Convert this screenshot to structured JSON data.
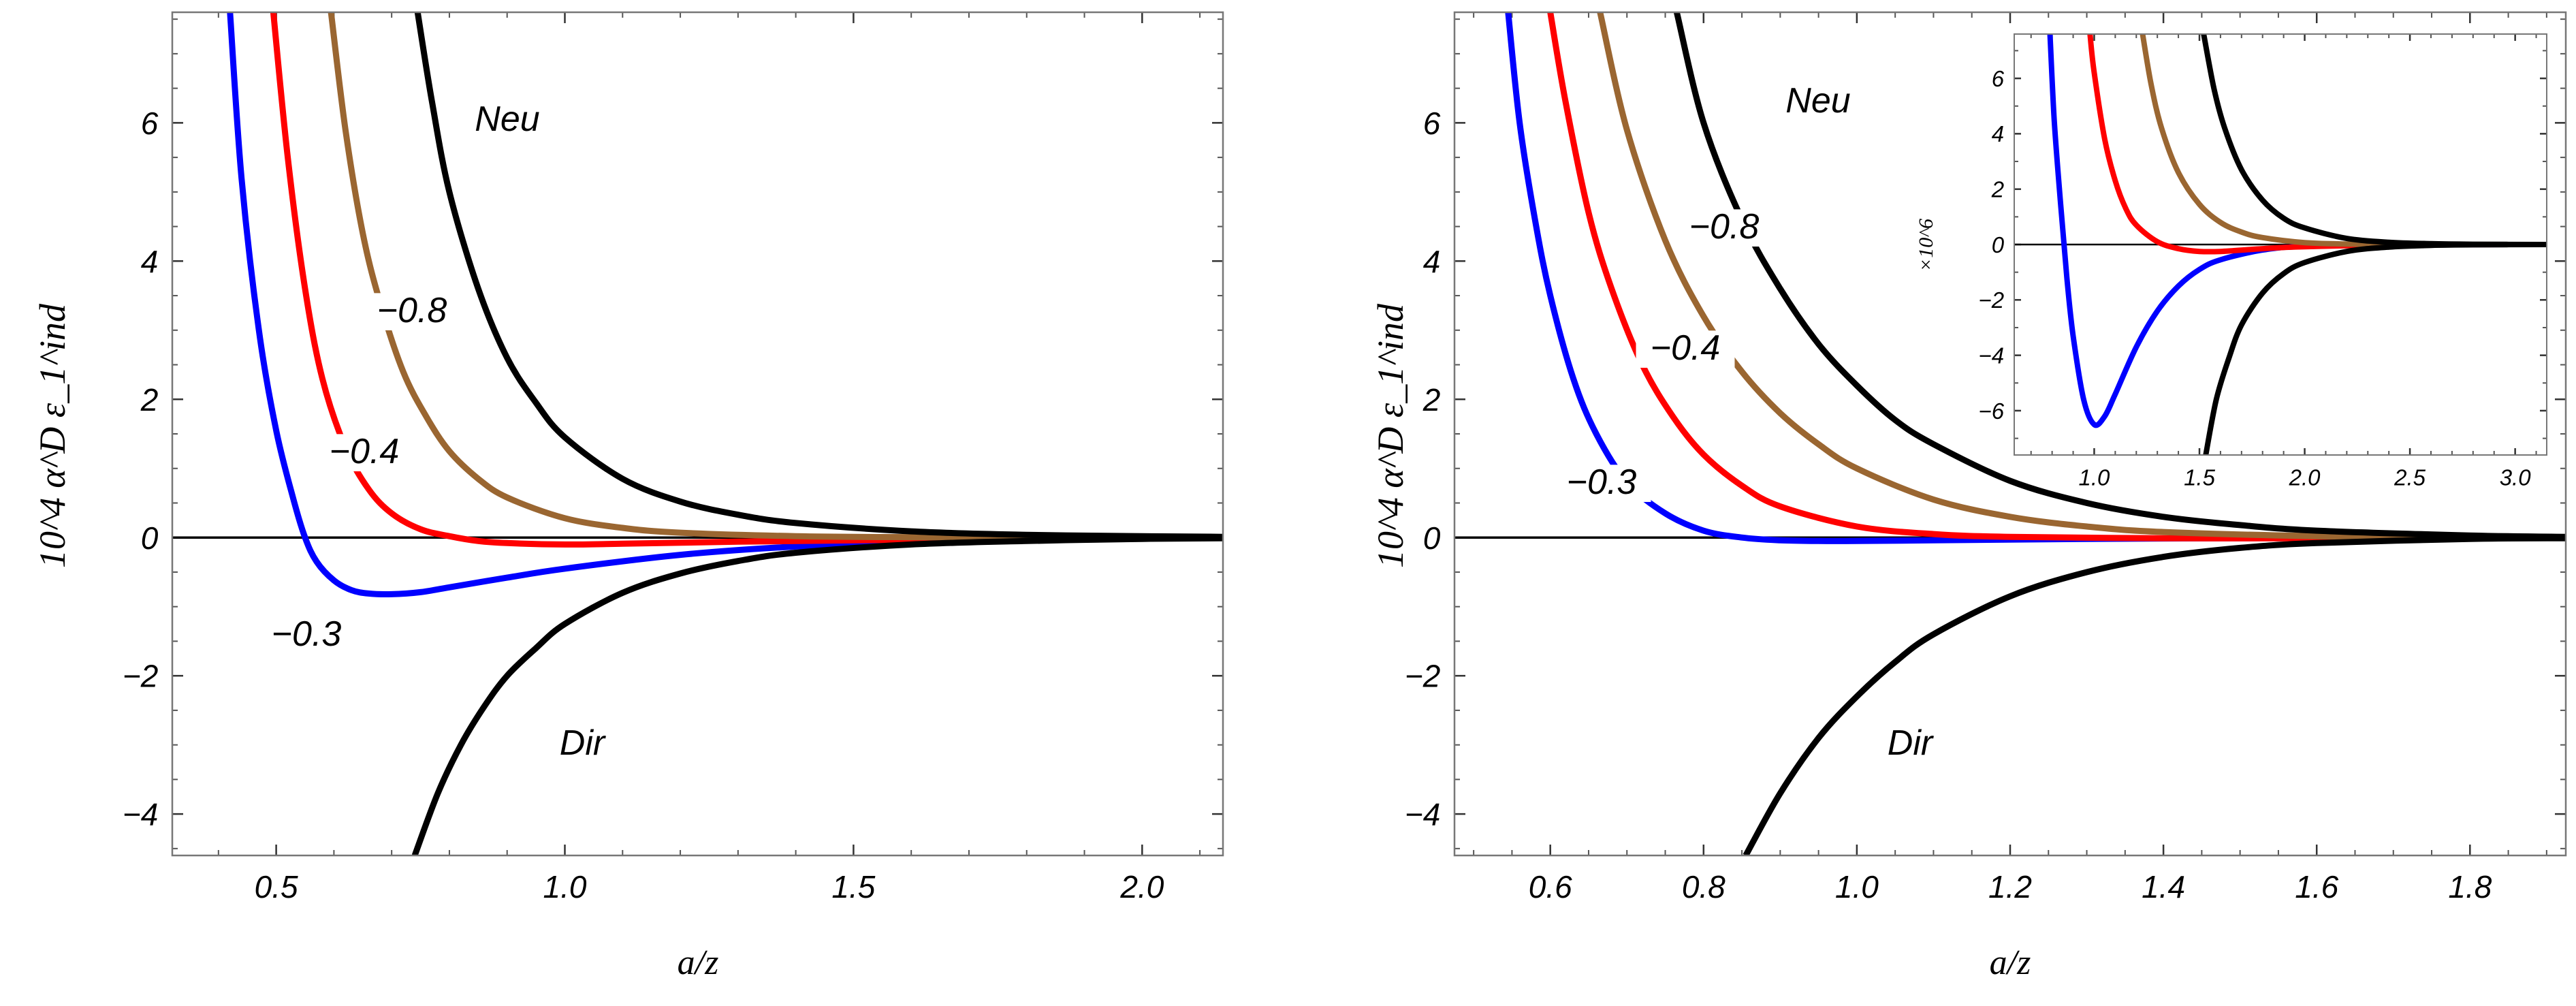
{
  "chart_data": [
    {
      "type": "line",
      "panel": "left",
      "xlabel": "a/z",
      "ylabel": "10^4 α^D ε_1^ind",
      "xlim": [
        0.32,
        2.14
      ],
      "ylim": [
        -4.6,
        7.6
      ],
      "xticks": [
        "0.5",
        "1.0",
        "1.5",
        "2.0"
      ],
      "yticks": [
        "−4",
        "−2",
        "0",
        "2",
        "4",
        "6"
      ],
      "series": [
        {
          "name": "−0.3",
          "color": "#0000ff",
          "x": [
            0.42,
            0.44,
            0.47,
            0.5,
            0.53,
            0.55,
            0.57,
            0.6,
            0.63,
            0.66,
            0.7,
            0.75,
            0.8,
            0.9,
            1.0,
            1.2,
            1.4,
            1.6,
            1.8,
            2.0,
            2.14
          ],
          "y": [
            7.6,
            5.2,
            3.0,
            1.55,
            0.55,
            0.0,
            -0.35,
            -0.62,
            -0.76,
            -0.81,
            -0.82,
            -0.79,
            -0.72,
            -0.58,
            -0.45,
            -0.25,
            -0.13,
            -0.07,
            -0.03,
            -0.01,
            0.0
          ]
        },
        {
          "name": "−0.4",
          "color": "#ff0000",
          "x": [
            0.495,
            0.52,
            0.55,
            0.58,
            0.62,
            0.66,
            0.7,
            0.75,
            0.8,
            0.85,
            0.9,
            1.0,
            1.1,
            1.3,
            1.6,
            2.0,
            2.14
          ],
          "y": [
            7.6,
            5.5,
            3.6,
            2.3,
            1.3,
            0.7,
            0.35,
            0.12,
            0.02,
            -0.05,
            -0.08,
            -0.1,
            -0.09,
            -0.06,
            -0.03,
            -0.01,
            0.0
          ]
        },
        {
          "name": "−0.8",
          "color": "#9a6631",
          "x": [
            0.595,
            0.62,
            0.65,
            0.68,
            0.72,
            0.76,
            0.8,
            0.85,
            0.9,
            1.0,
            1.1,
            1.2,
            1.4,
            1.6,
            1.8,
            2.0,
            2.14
          ],
          "y": [
            7.6,
            5.9,
            4.4,
            3.4,
            2.4,
            1.75,
            1.25,
            0.85,
            0.58,
            0.28,
            0.14,
            0.07,
            0.02,
            0.005,
            0.0,
            0.0,
            0.0
          ]
        },
        {
          "name": "Neu",
          "color": "#000000",
          "x": [
            0.745,
            0.77,
            0.8,
            0.85,
            0.9,
            0.95,
            1.0,
            1.1,
            1.2,
            1.3,
            1.4,
            1.6,
            1.8,
            2.0,
            2.14
          ],
          "y": [
            7.6,
            6.3,
            5.0,
            3.6,
            2.6,
            1.95,
            1.45,
            0.85,
            0.52,
            0.33,
            0.21,
            0.09,
            0.04,
            0.02,
            0.01
          ]
        },
        {
          "name": "Dir",
          "color": "#000000",
          "x": [
            0.74,
            0.78,
            0.82,
            0.86,
            0.9,
            0.95,
            1.0,
            1.1,
            1.2,
            1.3,
            1.4,
            1.6,
            1.8,
            2.0,
            2.14
          ],
          "y": [
            -4.6,
            -3.7,
            -3.0,
            -2.45,
            -2.0,
            -1.6,
            -1.25,
            -0.8,
            -0.52,
            -0.34,
            -0.22,
            -0.1,
            -0.05,
            -0.02,
            -0.01
          ]
        }
      ],
      "annotations": [
        "Neu",
        "−0.8",
        "−0.4",
        "−0.3",
        "Dir"
      ]
    },
    {
      "type": "line",
      "panel": "right",
      "xlabel": "a/z",
      "ylabel": "10^4 α^D ε_1^ind",
      "xlim": [
        0.475,
        1.925
      ],
      "ylim": [
        -4.6,
        7.6
      ],
      "xticks": [
        "0.6",
        "0.8",
        "1.0",
        "1.2",
        "1.4",
        "1.6",
        "1.8"
      ],
      "yticks": [
        "−4",
        "−2",
        "0",
        "2",
        "4",
        "6"
      ],
      "series": [
        {
          "name": "−0.3",
          "color": "#0000ff",
          "x": [
            0.545,
            0.56,
            0.58,
            0.6,
            0.63,
            0.66,
            0.7,
            0.75,
            0.8,
            0.85,
            0.9,
            0.95,
            1.0,
            1.1,
            1.3,
            1.6,
            1.925
          ],
          "y": [
            7.6,
            6.0,
            4.6,
            3.5,
            2.3,
            1.5,
            0.8,
            0.35,
            0.1,
            0.0,
            -0.04,
            -0.05,
            -0.05,
            -0.04,
            -0.02,
            -0.005,
            0.0
          ]
        },
        {
          "name": "−0.4",
          "color": "#ff0000",
          "x": [
            0.6,
            0.62,
            0.65,
            0.68,
            0.72,
            0.76,
            0.8,
            0.85,
            0.9,
            1.0,
            1.1,
            1.2,
            1.4,
            1.6,
            1.925
          ],
          "y": [
            7.6,
            6.3,
            4.7,
            3.6,
            2.5,
            1.75,
            1.2,
            0.75,
            0.45,
            0.16,
            0.05,
            0.01,
            -0.01,
            -0.01,
            0.0
          ]
        },
        {
          "name": "−0.8",
          "color": "#9a6631",
          "x": [
            0.665,
            0.7,
            0.75,
            0.8,
            0.85,
            0.9,
            0.95,
            1.0,
            1.1,
            1.2,
            1.3,
            1.4,
            1.6,
            1.8,
            1.925
          ],
          "y": [
            7.6,
            5.9,
            4.3,
            3.2,
            2.4,
            1.8,
            1.35,
            1.0,
            0.55,
            0.3,
            0.16,
            0.08,
            0.02,
            0.0,
            0.0
          ]
        },
        {
          "name": "Neu",
          "color": "#000000",
          "x": [
            0.765,
            0.8,
            0.85,
            0.9,
            0.95,
            1.0,
            1.05,
            1.1,
            1.2,
            1.3,
            1.4,
            1.5,
            1.6,
            1.8,
            1.925
          ],
          "y": [
            7.6,
            6.0,
            4.6,
            3.6,
            2.8,
            2.2,
            1.7,
            1.35,
            0.82,
            0.5,
            0.3,
            0.18,
            0.1,
            0.03,
            0.01
          ]
        },
        {
          "name": "Dir",
          "color": "#000000",
          "x": [
            0.855,
            0.9,
            0.95,
            1.0,
            1.05,
            1.1,
            1.2,
            1.3,
            1.4,
            1.5,
            1.6,
            1.8,
            1.925
          ],
          "y": [
            -4.6,
            -3.7,
            -2.9,
            -2.3,
            -1.8,
            -1.4,
            -0.85,
            -0.5,
            -0.28,
            -0.15,
            -0.08,
            -0.02,
            -0.01
          ]
        }
      ],
      "annotations": [
        "Neu",
        "−0.8",
        "−0.4",
        "−0.3",
        "Dir"
      ]
    },
    {
      "type": "line",
      "panel": "inset",
      "ylabel": "×10^6",
      "xlim": [
        0.62,
        3.15
      ],
      "ylim": [
        -7.6,
        7.6
      ],
      "xticks": [
        "1.0",
        "1.5",
        "2.0",
        "2.5",
        "3.0"
      ],
      "yticks": [
        "−6",
        "−4",
        "−2",
        "0",
        "2",
        "4",
        "6"
      ],
      "series": [
        {
          "name": "−0.3",
          "color": "#0000ff",
          "x": [
            0.79,
            0.81,
            0.84,
            0.87,
            0.9,
            0.95,
            1.0,
            1.05,
            1.1,
            1.2,
            1.3,
            1.4,
            1.5,
            1.6,
            1.8,
            2.0,
            2.5,
            3.15
          ],
          "y": [
            7.6,
            4.5,
            1.5,
            -1.2,
            -3.3,
            -5.6,
            -6.5,
            -6.2,
            -5.4,
            -3.7,
            -2.4,
            -1.5,
            -0.9,
            -0.55,
            -0.2,
            -0.07,
            -0.01,
            0.0
          ]
        },
        {
          "name": "−0.4",
          "color": "#ff0000",
          "x": [
            0.98,
            1.0,
            1.05,
            1.1,
            1.15,
            1.2,
            1.3,
            1.4,
            1.5,
            1.6,
            1.8,
            2.0,
            2.5,
            3.15
          ],
          "y": [
            7.6,
            6.2,
            3.8,
            2.3,
            1.3,
            0.7,
            0.1,
            -0.15,
            -0.25,
            -0.25,
            -0.15,
            -0.08,
            -0.01,
            0.0
          ]
        },
        {
          "name": "−0.8",
          "color": "#9a6631",
          "x": [
            1.23,
            1.27,
            1.32,
            1.4,
            1.5,
            1.6,
            1.7,
            1.8,
            2.0,
            2.2,
            2.5,
            3.15
          ],
          "y": [
            7.6,
            5.8,
            4.2,
            2.6,
            1.45,
            0.8,
            0.45,
            0.25,
            0.07,
            0.02,
            0.0,
            0.0
          ]
        },
        {
          "name": "Neu",
          "color": "#000000",
          "x": [
            1.52,
            1.57,
            1.62,
            1.7,
            1.8,
            1.9,
            2.0,
            2.2,
            2.4,
            2.6,
            2.8,
            3.15
          ],
          "y": [
            7.6,
            5.6,
            4.2,
            2.7,
            1.6,
            0.95,
            0.6,
            0.22,
            0.08,
            0.03,
            0.01,
            0.0
          ]
        },
        {
          "name": "Dir",
          "color": "#000000",
          "x": [
            1.53,
            1.58,
            1.64,
            1.7,
            1.8,
            1.9,
            2.0,
            2.2,
            2.4,
            2.6,
            2.8,
            3.15
          ],
          "y": [
            -7.6,
            -5.6,
            -4.1,
            -2.9,
            -1.75,
            -1.05,
            -0.65,
            -0.25,
            -0.09,
            -0.03,
            -0.01,
            0.0
          ]
        }
      ]
    }
  ]
}
